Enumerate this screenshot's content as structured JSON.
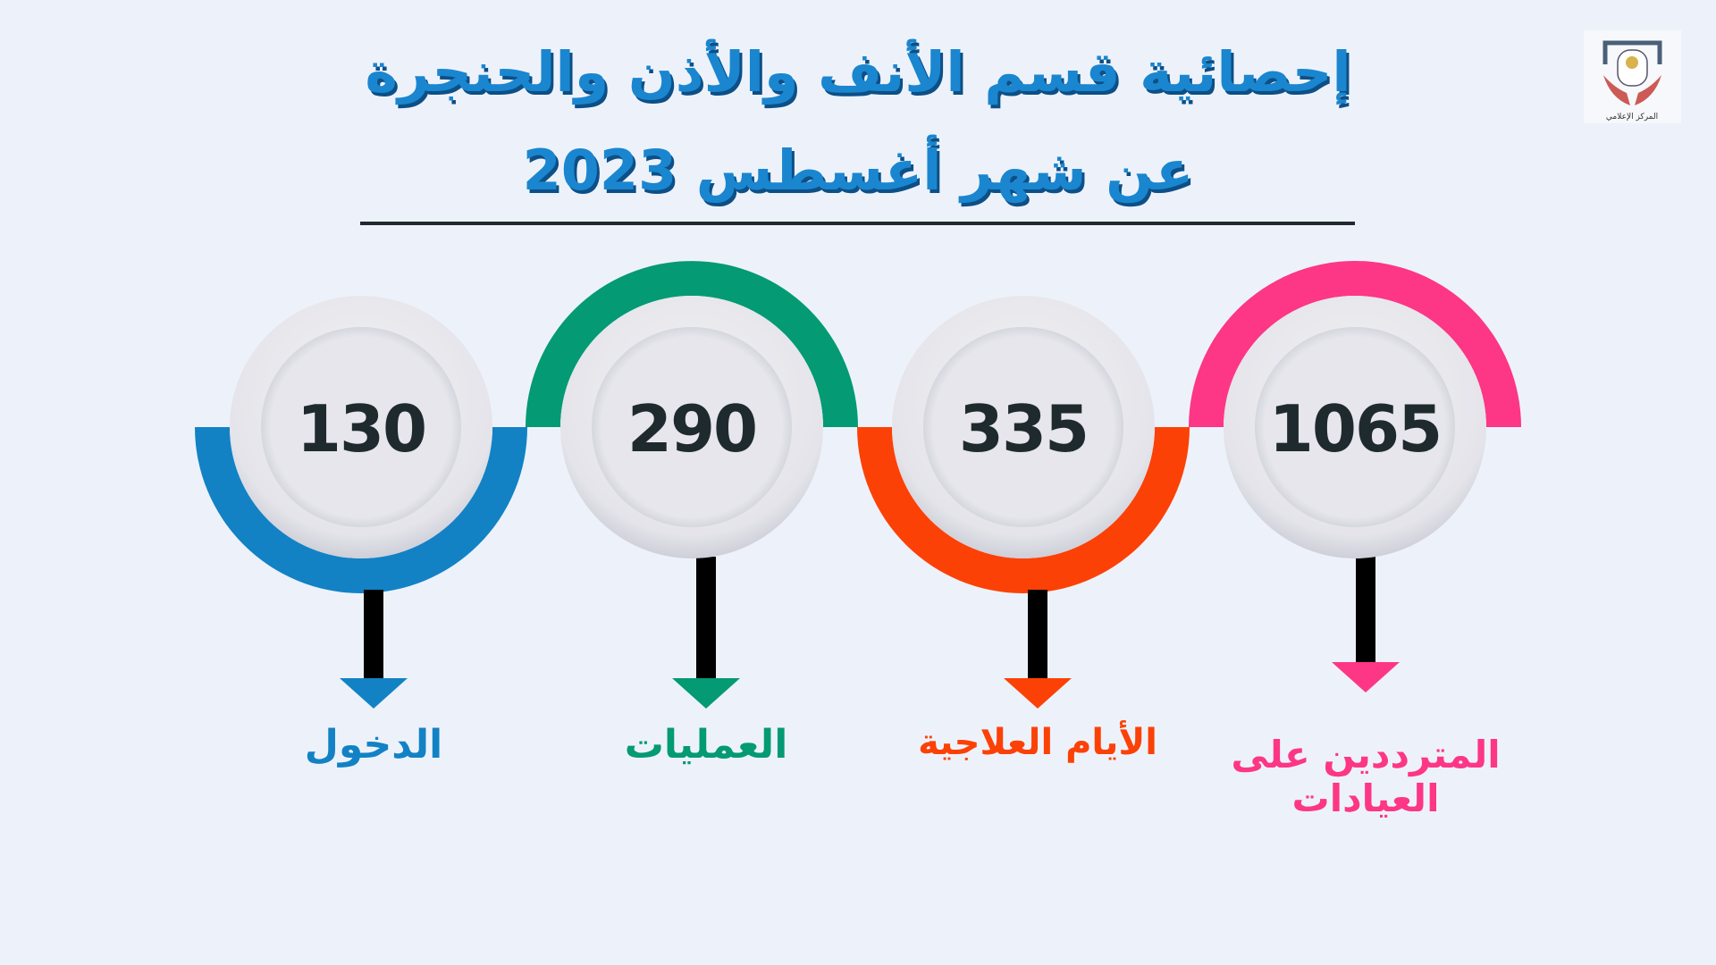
{
  "title": {
    "line1": "إحصائية قسم الأنف والأذن والحنجرة",
    "line2": "عن شهر أغسطس 2023"
  },
  "logo": {
    "text": "المركز الإعلامي"
  },
  "stats": [
    {
      "value": "130",
      "label": "الدخول",
      "color": "#1282c5"
    },
    {
      "value": "290",
      "label": "العمليات",
      "color": "#039a74"
    },
    {
      "value": "335",
      "label": "الأيام العلاجية",
      "color": "#fc4106"
    },
    {
      "value": "1065",
      "label": "المترددين على العيادات",
      "color": "#fd3686"
    }
  ]
}
